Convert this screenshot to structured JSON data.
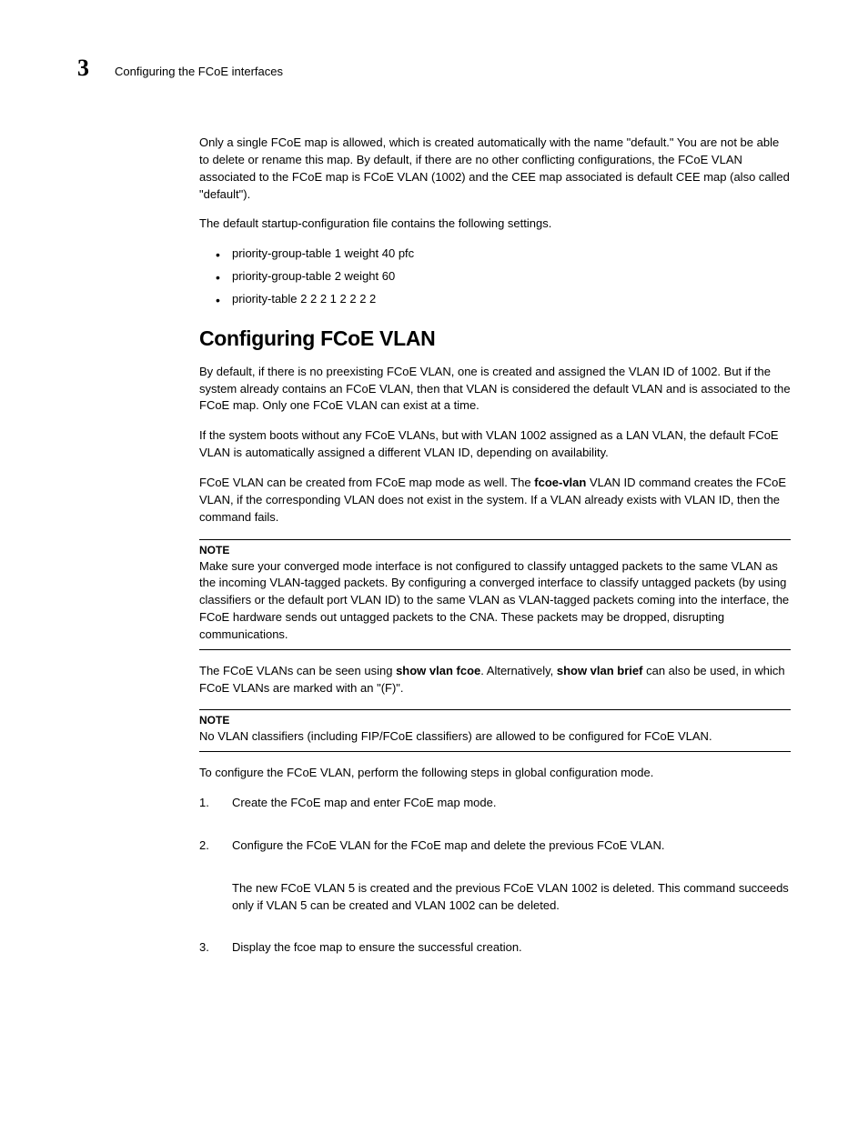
{
  "header": {
    "chapter_number": "3",
    "section_title": "Configuring the FCoE interfaces"
  },
  "intro_p1": "Only a single FCoE map is allowed, which is created automatically with the name \"default.\" You are not be able to delete or rename this map. By default, if there are no other conflicting configurations, the FCoE VLAN associated to the FCoE map is FCoE VLAN (1002) and the CEE map associated is default CEE map (also called \"default\").",
  "intro_p2": "The default startup-configuration file contains the following settings.",
  "settings_list": [
    "priority-group-table 1 weight 40 pfc",
    "priority-group-table 2 weight 60",
    "priority-table 2 2 2 1 2 2 2 2"
  ],
  "subsection_heading": "Configuring FCoE VLAN",
  "vlan_p1": "By default, if there is no preexisting FCoE VLAN, one is created and assigned the VLAN ID of 1002. But if the system already contains an FCoE VLAN, then that VLAN is considered the default VLAN and is associated to the FCoE map. Only one FCoE VLAN can exist at a time.",
  "vlan_p2": "If the system boots without any FCoE VLANs, but with VLAN 1002 assigned as a LAN VLAN, the default FCoE VLAN is automatically assigned a different VLAN ID, depending on availability.",
  "vlan_p3_pre": "FCoE VLAN can be created from FCoE map mode as well. The ",
  "vlan_p3_bold": "fcoe-vlan",
  "vlan_p3_post": " VLAN ID command creates the FCoE VLAN, if the corresponding VLAN does not exist in the system. If a VLAN already exists with VLAN ID, then the command fails.",
  "note1": {
    "label": "NOTE",
    "text": "Make sure your converged mode interface is not configured to classify untagged packets to the same VLAN as the incoming VLAN-tagged packets.  By configuring  a converged interface to classify untagged packets (by using classifiers or the default port VLAN ID) to the same VLAN as VLAN-tagged packets coming into the interface, the FCoE hardware sends out untagged packets to the CNA. These packets may be  dropped, disrupting communications."
  },
  "vlan_p4_pre": "The FCoE VLANs can be seen using ",
  "vlan_p4_bold1": "show vlan fcoe",
  "vlan_p4_mid": ". Alternatively, ",
  "vlan_p4_bold2": "show vlan brief",
  "vlan_p4_post": " can also be used, in which FCoE VLANs are marked with an \"(F)\".",
  "note2": {
    "label": "NOTE",
    "text": "No VLAN classifiers (including FIP/FCoE classifiers) are allowed to be configured for FCoE VLAN."
  },
  "vlan_p5": "To configure the FCoE VLAN, perform the following steps in global configuration mode.",
  "steps": [
    {
      "num": "1.",
      "text": "Create the FCoE map and enter FCoE map mode."
    },
    {
      "num": "2.",
      "text": "Configure the FCoE VLAN for the FCoE map and delete the previous FCoE VLAN.",
      "sub": "The new FCoE VLAN 5 is created and the previous FCoE VLAN 1002 is deleted. This command succeeds only if VLAN 5 can be created and VLAN 1002 can be deleted."
    },
    {
      "num": "3.",
      "text": "Display the fcoe map to ensure the successful creation."
    }
  ]
}
